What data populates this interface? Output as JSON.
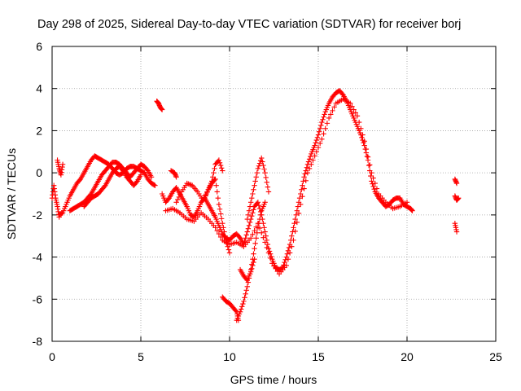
{
  "chart_data": {
    "type": "scatter",
    "title": "Day 298 of 2025, Sidereal Day-to-day VTEC variation (SDTVAR) for receiver borj",
    "xlabel": "GPS time / hours",
    "ylabel": "SDTVAR / TECUs",
    "xlim": [
      0,
      25
    ],
    "ylim": [
      -8,
      6
    ],
    "xticks": [
      0,
      5,
      10,
      15,
      20,
      25
    ],
    "yticks": [
      -8,
      -6,
      -4,
      -2,
      0,
      2,
      4,
      6
    ],
    "grid": true,
    "marker": "+",
    "series": [
      {
        "name": "SDTVAR",
        "color": "#ff0000",
        "segments": [
          {
            "x": [
              0.0,
              0.1,
              0.2,
              0.3,
              0.4
            ],
            "y": [
              -1.2,
              -0.6,
              -1.2,
              -1.6,
              -2.1
            ]
          },
          {
            "x": [
              0.3,
              0.4,
              0.5,
              0.6
            ],
            "y": [
              0.6,
              0.2,
              -0.1,
              0.4
            ]
          },
          {
            "x": [
              0.4,
              0.6,
              0.8,
              1.0,
              1.2,
              1.4,
              1.6,
              1.8,
              2.0,
              2.2,
              2.4,
              2.6,
              2.8,
              3.0,
              3.2,
              3.4,
              3.6,
              3.8,
              4.0,
              4.2,
              4.4,
              4.6,
              4.8,
              5.0,
              5.2,
              5.4,
              5.6,
              5.8
            ],
            "y": [
              -2.0,
              -1.9,
              -1.5,
              -1.1,
              -0.8,
              -0.5,
              -0.3,
              0.0,
              0.3,
              0.6,
              0.8,
              0.7,
              0.6,
              0.5,
              0.4,
              0.2,
              0.0,
              -0.1,
              0.0,
              0.2,
              0.3,
              0.3,
              0.2,
              0.1,
              0.0,
              -0.3,
              -0.5,
              -0.6
            ]
          },
          {
            "x": [
              1.0,
              1.2,
              1.4,
              1.6,
              1.8,
              2.0,
              2.2,
              2.4,
              2.6,
              2.8,
              3.0,
              3.2,
              3.4,
              3.6,
              3.8,
              4.0,
              4.2,
              4.4,
              4.6,
              4.8,
              5.0,
              5.2,
              5.4,
              5.6
            ],
            "y": [
              -1.8,
              -1.7,
              -1.6,
              -1.5,
              -1.4,
              -1.2,
              -1.0,
              -0.7,
              -0.4,
              -0.1,
              0.1,
              0.3,
              0.5,
              0.5,
              0.4,
              0.2,
              0.0,
              -0.2,
              0.0,
              0.2,
              0.4,
              0.3,
              0.1,
              -0.2
            ]
          },
          {
            "x": [
              1.8,
              2.0,
              2.2,
              2.4,
              2.6,
              2.8,
              3.0,
              3.2,
              3.4,
              3.6,
              3.8,
              4.0,
              4.2,
              4.4,
              4.6,
              4.8,
              5.0
            ],
            "y": [
              -1.6,
              -1.4,
              -1.2,
              -1.1,
              -1.0,
              -0.8,
              -0.6,
              -0.3,
              0.0,
              0.2,
              0.3,
              0.1,
              -0.2,
              -0.4,
              -0.6,
              -0.4,
              -0.1
            ]
          },
          {
            "x": [
              5.9,
              6.0,
              6.1,
              6.2
            ],
            "y": [
              3.4,
              3.3,
              3.1,
              3.0
            ]
          },
          {
            "x": [
              6.2,
              6.4,
              6.6,
              6.8,
              7.0,
              7.2,
              7.4,
              7.6,
              7.8,
              8.0,
              8.2,
              8.4,
              8.6,
              8.8,
              9.0,
              9.2,
              9.4,
              9.6,
              9.8,
              10.0,
              10.2,
              10.4,
              10.6,
              10.8,
              11.0,
              11.2,
              11.4,
              11.6,
              11.8,
              12.0,
              12.2,
              12.4,
              12.6,
              12.8,
              13.0,
              13.2,
              13.4,
              13.6,
              13.8,
              14.0,
              14.2,
              14.4,
              14.6,
              14.8,
              15.0,
              15.2,
              15.4,
              15.6,
              15.8,
              16.0,
              16.2,
              16.4,
              16.6,
              16.8,
              17.0,
              17.2,
              17.4,
              17.6,
              17.8,
              18.0,
              18.2,
              18.4,
              18.6,
              18.8,
              19.0,
              19.2,
              19.4,
              19.6,
              19.8,
              20.0,
              20.2,
              20.3
            ],
            "y": [
              -1.0,
              -1.4,
              -1.2,
              -0.9,
              -0.7,
              -1.0,
              -1.3,
              -1.6,
              -2.0,
              -2.1,
              -1.8,
              -1.4,
              -1.2,
              -1.5,
              -1.8,
              -2.1,
              -2.5,
              -2.9,
              -3.1,
              -3.2,
              -3.0,
              -2.9,
              -3.1,
              -3.4,
              -2.8,
              -2.2,
              -1.6,
              -1.4,
              -2.0,
              -2.8,
              -3.6,
              -4.1,
              -4.5,
              -4.6,
              -4.5,
              -4.0,
              -3.4,
              -2.6,
              -1.8,
              -1.0,
              -0.2,
              0.4,
              0.9,
              1.3,
              1.8,
              2.4,
              2.9,
              3.3,
              3.6,
              3.8,
              3.9,
              3.7,
              3.4,
              3.0,
              2.6,
              2.2,
              1.8,
              1.3,
              0.6,
              -0.4,
              -0.9,
              -1.2,
              -1.4,
              -1.6,
              -1.5,
              -1.3,
              -1.2,
              -1.2,
              -1.5,
              -1.6,
              -1.7,
              -1.8
            ]
          },
          {
            "x": [
              6.4,
              6.8,
              7.2,
              7.6,
              8.0,
              8.4,
              8.8,
              9.2,
              9.6,
              10.0,
              10.4,
              10.8,
              11.2,
              11.6,
              12.0,
              12.4,
              12.8,
              13.2,
              13.6,
              14.0,
              14.4,
              14.8,
              15.2,
              15.6,
              16.0,
              16.4,
              16.8,
              17.2,
              17.6,
              18.0,
              18.4,
              18.8,
              19.2,
              19.6,
              20.0
            ],
            "y": [
              -1.8,
              -1.7,
              -1.9,
              -2.2,
              -2.3,
              -1.9,
              -2.2,
              -2.6,
              -3.2,
              -3.4,
              -3.3,
              -3.5,
              -3.1,
              -2.4,
              -3.3,
              -4.3,
              -4.8,
              -4.4,
              -3.2,
              -1.5,
              0.0,
              0.8,
              1.6,
              2.6,
              3.3,
              3.5,
              3.3,
              2.7,
              1.5,
              0.0,
              -1.0,
              -1.4,
              -1.7,
              -1.6,
              -1.4
            ]
          },
          {
            "x": [
              7.0,
              7.3,
              7.6,
              7.9,
              8.2,
              8.5,
              8.8,
              9.0,
              9.2,
              9.4,
              9.6
            ],
            "y": [
              -1.4,
              -0.9,
              -0.5,
              -0.6,
              -0.9,
              -1.3,
              -0.8,
              -0.4,
              0.4,
              0.6,
              0.1
            ]
          },
          {
            "x": [
              8.6,
              8.8,
              9.0,
              9.2,
              9.4,
              9.6,
              9.8,
              10.0
            ],
            "y": [
              -1.2,
              -0.8,
              -0.5,
              -0.3,
              -1.5,
              -2.4,
              -3.2,
              -3.8
            ]
          },
          {
            "x": [
              9.6,
              9.8,
              10.0,
              10.2,
              10.4,
              10.5
            ],
            "y": [
              -5.9,
              -6.1,
              -6.2,
              -6.4,
              -6.6,
              -7.0
            ]
          },
          {
            "x": [
              10.4,
              10.6,
              10.8,
              11.0,
              11.2,
              11.4,
              11.6,
              11.8,
              12.0
            ],
            "y": [
              -7.0,
              -6.6,
              -6.1,
              -5.4,
              -4.6,
              -3.6,
              -2.6,
              -1.8,
              -1.4
            ]
          },
          {
            "x": [
              10.6,
              10.8,
              11.0,
              11.2,
              11.4
            ],
            "y": [
              -4.6,
              -4.9,
              -5.1,
              -4.7,
              -4.1
            ]
          },
          {
            "x": [
              11.0,
              11.2,
              11.4,
              11.6,
              11.8,
              12.0,
              12.2
            ],
            "y": [
              -2.2,
              -1.4,
              -0.6,
              0.2,
              0.7,
              0.0,
              -0.9
            ]
          },
          {
            "x": [
              6.7,
              6.9,
              7.0
            ],
            "y": [
              0.1,
              0.0,
              -0.2
            ]
          },
          {
            "x": [
              22.7,
              22.8
            ],
            "y": [
              -0.3,
              -0.5
            ]
          },
          {
            "x": [
              22.7,
              22.8,
              22.9
            ],
            "y": [
              -1.1,
              -1.3,
              -1.2
            ]
          },
          {
            "x": [
              22.7,
              22.8
            ],
            "y": [
              -2.4,
              -2.8
            ]
          }
        ]
      }
    ]
  }
}
